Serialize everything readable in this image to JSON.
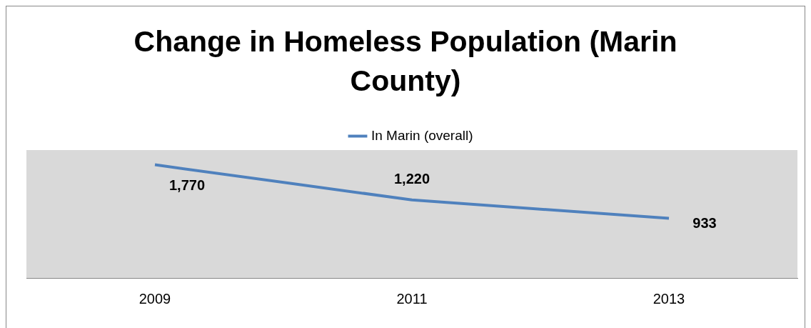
{
  "chart_data": {
    "type": "line",
    "title": "Change in Homeless Population (Marin County)",
    "categories": [
      "2009",
      "2011",
      "2013"
    ],
    "series": [
      {
        "name": "In Marin (overall)",
        "color": "#4f81bd",
        "values": [
          1770,
          1220,
          933
        ],
        "value_labels": [
          "1,770",
          "1,220",
          "933"
        ]
      }
    ],
    "ylim": [
      0,
      2000
    ],
    "tick_labels": "x",
    "grid": false,
    "legend": "top",
    "marker": "none",
    "line_style": "solid"
  }
}
